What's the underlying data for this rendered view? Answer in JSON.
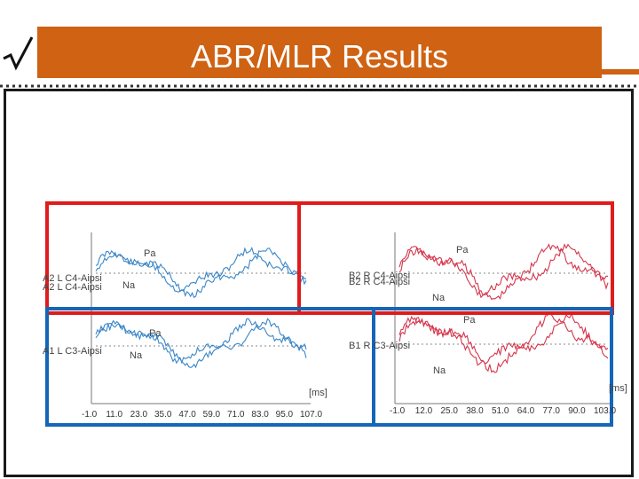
{
  "slide": {
    "title": "ABR/MLR Results"
  },
  "colors": {
    "title_bar": "#cf6213",
    "left_trace": "#3a86c8",
    "right_trace": "#d4364c",
    "red_box": "#e01b1b",
    "blue_box": "#1466b8"
  },
  "figure": {
    "left": {
      "top_channel_labels": [
        "A2 L C4-Aipsi",
        "A2 L C4-Aipsi"
      ],
      "bottom_channel_labels": [
        "A1 L C3-Aipsi",
        "A1 L C3-Aipsi"
      ],
      "peak_pa": "Pa",
      "peak_na": "Na",
      "unit": "[ms]",
      "x_ticks": [
        "-1.0",
        "11.0",
        "23.0",
        "35.0",
        "47.0",
        "59.0",
        "71.0",
        "83.0",
        "95.0",
        "107.0"
      ]
    },
    "right": {
      "top_channel_labels": [
        "B2 R C4-Aipsi",
        "B2 R C4-Aipsi"
      ],
      "bottom_channel_labels": [
        "B1 R C3-Aipsi",
        "B1 R C3-Aipsi"
      ],
      "peak_pa": "Pa",
      "peak_na": "Na",
      "unit": "[ms]",
      "x_ticks": [
        "-1.0",
        "12.0",
        "25.0",
        "38.0",
        "51.0",
        "64.0",
        "77.0",
        "90.0",
        "103.0"
      ]
    }
  }
}
